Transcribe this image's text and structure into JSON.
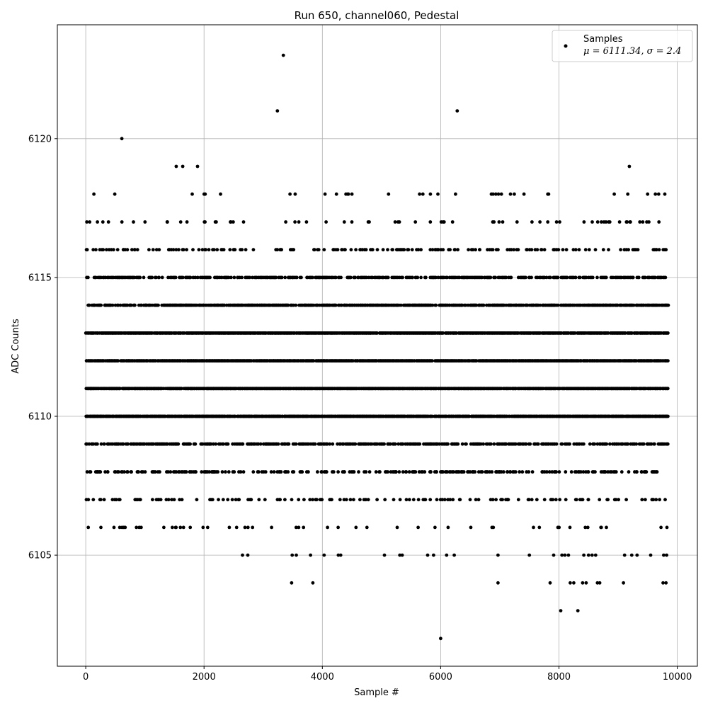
{
  "chart_data": {
    "type": "scatter",
    "title": "Run 650, channel060, Pedestal",
    "xlabel": "Sample #",
    "ylabel": "ADC Counts",
    "xlim": [
      -480,
      10340
    ],
    "ylim": [
      6101.0,
      6124.1
    ],
    "xticks": [
      0,
      2000,
      4000,
      6000,
      8000,
      10000
    ],
    "xtick_labels": [
      "0",
      "2000",
      "4000",
      "6000",
      "8000",
      "10000"
    ],
    "yticks": [
      6105,
      6110,
      6115,
      6120
    ],
    "ytick_labels": [
      "6105",
      "6110",
      "6115",
      "6120"
    ],
    "grid": true,
    "legend": {
      "position": "top-right",
      "label": "Samples",
      "sublabel": "μ = 6111.34, σ = 2.4"
    },
    "marker_color": "#000000",
    "n_samples": 9850,
    "levels": [
      {
        "y": 6106,
        "density": 0.08
      },
      {
        "y": 6107,
        "density": 0.15
      },
      {
        "y": 6108,
        "density": 0.3
      },
      {
        "y": 6109,
        "density": 0.5
      },
      {
        "y": 6110,
        "density": 0.9
      },
      {
        "y": 6111,
        "density": 0.9
      },
      {
        "y": 6112,
        "density": 0.9
      },
      {
        "y": 6113,
        "density": 0.9
      },
      {
        "y": 6114,
        "density": 0.7
      },
      {
        "y": 6115,
        "density": 0.45
      },
      {
        "y": 6116,
        "density": 0.2
      },
      {
        "y": 6117,
        "density": 0.08
      },
      {
        "y": 6118,
        "density": 0.03
      }
    ],
    "outliers": [
      {
        "x": 610,
        "y": 6120
      },
      {
        "x": 3240,
        "y": 6121
      },
      {
        "x": 3340,
        "y": 6123
      },
      {
        "x": 6280,
        "y": 6121
      },
      {
        "x": 1530,
        "y": 6119
      },
      {
        "x": 1640,
        "y": 6119
      },
      {
        "x": 1890,
        "y": 6119
      },
      {
        "x": 9190,
        "y": 6119
      },
      {
        "x": 6000,
        "y": 6102
      },
      {
        "x": 8030,
        "y": 6103
      },
      {
        "x": 8320,
        "y": 6103
      },
      {
        "x": 3480,
        "y": 6104
      },
      {
        "x": 3840,
        "y": 6104
      },
      {
        "x": 6970,
        "y": 6104
      },
      {
        "x": 7850,
        "y": 6104
      },
      {
        "x": 8190,
        "y": 6104
      },
      {
        "x": 8250,
        "y": 6104
      },
      {
        "x": 8400,
        "y": 6104
      },
      {
        "x": 8460,
        "y": 6104
      },
      {
        "x": 8650,
        "y": 6104
      },
      {
        "x": 8690,
        "y": 6104
      },
      {
        "x": 9090,
        "y": 6104
      },
      {
        "x": 9760,
        "y": 6104
      },
      {
        "x": 9810,
        "y": 6104
      },
      {
        "x": 2650,
        "y": 6105
      },
      {
        "x": 2740,
        "y": 6105
      },
      {
        "x": 3490,
        "y": 6105
      },
      {
        "x": 3560,
        "y": 6105
      },
      {
        "x": 3800,
        "y": 6105
      },
      {
        "x": 4030,
        "y": 6105
      },
      {
        "x": 4270,
        "y": 6105
      },
      {
        "x": 4310,
        "y": 6105
      },
      {
        "x": 5050,
        "y": 6105
      },
      {
        "x": 5310,
        "y": 6105
      },
      {
        "x": 5350,
        "y": 6105
      },
      {
        "x": 5780,
        "y": 6105
      },
      {
        "x": 5880,
        "y": 6105
      },
      {
        "x": 6100,
        "y": 6105
      },
      {
        "x": 6230,
        "y": 6105
      },
      {
        "x": 6970,
        "y": 6105
      },
      {
        "x": 7500,
        "y": 6105
      },
      {
        "x": 7910,
        "y": 6105
      },
      {
        "x": 8050,
        "y": 6105
      },
      {
        "x": 8100,
        "y": 6105
      },
      {
        "x": 8160,
        "y": 6105
      },
      {
        "x": 8420,
        "y": 6105
      },
      {
        "x": 8500,
        "y": 6105
      },
      {
        "x": 8560,
        "y": 6105
      },
      {
        "x": 8620,
        "y": 6105
      },
      {
        "x": 9110,
        "y": 6105
      },
      {
        "x": 9230,
        "y": 6105
      },
      {
        "x": 9320,
        "y": 6105
      },
      {
        "x": 9550,
        "y": 6105
      },
      {
        "x": 9770,
        "y": 6105
      },
      {
        "x": 9820,
        "y": 6105
      }
    ]
  }
}
